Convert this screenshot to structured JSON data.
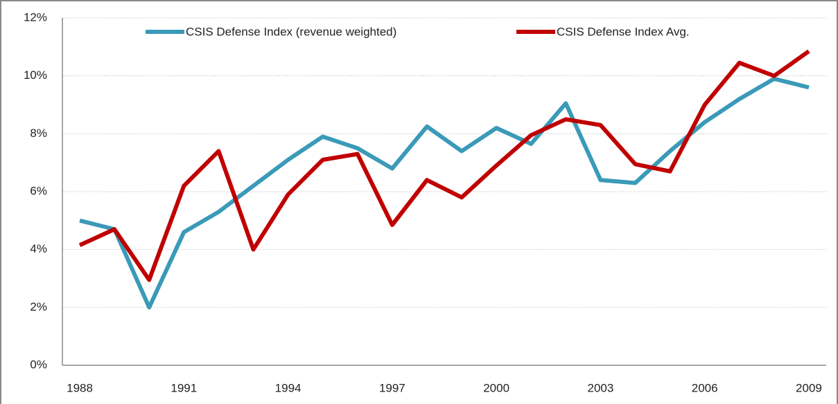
{
  "chart_data": {
    "type": "line",
    "categories": [
      "1988",
      null,
      null,
      "1991",
      null,
      null,
      "1994",
      null,
      null,
      "1997",
      null,
      null,
      "2000",
      null,
      null,
      "2003",
      null,
      null,
      "2006",
      null,
      null,
      "2009"
    ],
    "series": [
      {
        "name": "CSIS Defense Index (revenue weighted)",
        "color": "#3a9ab8",
        "values": [
          5.0,
          4.7,
          2.0,
          4.6,
          5.3,
          6.2,
          7.1,
          7.9,
          7.5,
          6.8,
          8.25,
          7.4,
          8.2,
          7.65,
          9.05,
          6.4,
          6.3,
          7.4,
          8.4,
          9.2,
          9.9,
          9.6
        ]
      },
      {
        "name": "CSIS Defense Index Avg.",
        "color": "#c00000",
        "values": [
          4.15,
          4.7,
          2.95,
          6.2,
          7.4,
          4.0,
          5.9,
          7.1,
          7.3,
          4.85,
          6.4,
          5.8,
          6.9,
          7.95,
          8.5,
          8.3,
          6.95,
          6.7,
          9.0,
          10.45,
          10.0,
          10.85
        ]
      }
    ],
    "ylim": [
      0,
      12
    ],
    "yticks": [
      {
        "value": 0,
        "label": "0%"
      },
      {
        "value": 2,
        "label": "2%"
      },
      {
        "value": 4,
        "label": "4%"
      },
      {
        "value": 6,
        "label": "6%"
      },
      {
        "value": 8,
        "label": "8%"
      },
      {
        "value": 10,
        "label": "10%"
      },
      {
        "value": 12,
        "label": "12%"
      }
    ],
    "grid": true,
    "legend": "top"
  }
}
